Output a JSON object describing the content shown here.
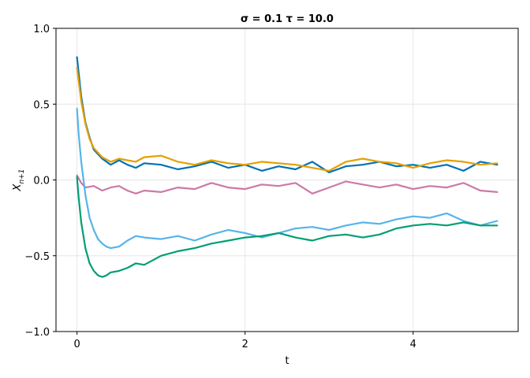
{
  "chart_data": {
    "type": "line",
    "title": "σ = 0.1 τ = 10.0",
    "xlabel": "t",
    "ylabel": "X",
    "ylabel_subscript": "n+1",
    "xlim": [
      -0.25,
      5.25
    ],
    "ylim": [
      -1.0,
      1.0
    ],
    "x_ticks": [
      0,
      2,
      4
    ],
    "x_tick_labels": [
      "0",
      "2",
      "4"
    ],
    "y_ticks": [
      -1.0,
      -0.5,
      0.0,
      0.5,
      1.0
    ],
    "y_tick_labels": [
      "−1.0",
      "−0.5",
      "0.0",
      "0.5",
      "1.0"
    ],
    "grid": true,
    "series": [
      {
        "color": "#0072b2",
        "x": [
          0,
          0.05,
          0.1,
          0.15,
          0.2,
          0.3,
          0.4,
          0.5,
          0.6,
          0.7,
          0.8,
          1.0,
          1.2,
          1.4,
          1.6,
          1.8,
          2.0,
          2.2,
          2.4,
          2.6,
          2.8,
          3.0,
          3.2,
          3.4,
          3.6,
          3.8,
          4.0,
          4.2,
          4.4,
          4.6,
          4.8,
          5.0
        ],
        "y": [
          0.81,
          0.55,
          0.38,
          0.28,
          0.2,
          0.14,
          0.1,
          0.13,
          0.1,
          0.08,
          0.11,
          0.1,
          0.07,
          0.09,
          0.12,
          0.08,
          0.1,
          0.06,
          0.09,
          0.07,
          0.12,
          0.05,
          0.09,
          0.1,
          0.12,
          0.09,
          0.1,
          0.08,
          0.1,
          0.06,
          0.12,
          0.1
        ]
      },
      {
        "color": "#e69f00",
        "x": [
          0,
          0.05,
          0.1,
          0.15,
          0.2,
          0.3,
          0.4,
          0.5,
          0.6,
          0.7,
          0.8,
          1.0,
          1.2,
          1.4,
          1.6,
          1.8,
          2.0,
          2.2,
          2.4,
          2.6,
          2.8,
          3.0,
          3.2,
          3.4,
          3.6,
          3.8,
          4.0,
          4.2,
          4.4,
          4.6,
          4.8,
          5.0
        ],
        "y": [
          0.74,
          0.52,
          0.37,
          0.27,
          0.21,
          0.15,
          0.12,
          0.14,
          0.13,
          0.12,
          0.15,
          0.16,
          0.12,
          0.1,
          0.13,
          0.11,
          0.1,
          0.12,
          0.11,
          0.1,
          0.08,
          0.06,
          0.12,
          0.14,
          0.12,
          0.11,
          0.08,
          0.11,
          0.13,
          0.12,
          0.1,
          0.11
        ]
      },
      {
        "color": "#cc79a7",
        "x": [
          0,
          0.05,
          0.1,
          0.2,
          0.3,
          0.4,
          0.5,
          0.6,
          0.7,
          0.8,
          1.0,
          1.2,
          1.4,
          1.6,
          1.8,
          2.0,
          2.2,
          2.4,
          2.6,
          2.8,
          3.0,
          3.2,
          3.4,
          3.6,
          3.8,
          4.0,
          4.2,
          4.4,
          4.6,
          4.8,
          5.0
        ],
        "y": [
          0.03,
          -0.02,
          -0.05,
          -0.04,
          -0.07,
          -0.05,
          -0.04,
          -0.07,
          -0.09,
          -0.07,
          -0.08,
          -0.05,
          -0.06,
          -0.02,
          -0.05,
          -0.06,
          -0.03,
          -0.04,
          -0.02,
          -0.09,
          -0.05,
          -0.01,
          -0.03,
          -0.05,
          -0.03,
          -0.06,
          -0.04,
          -0.05,
          -0.02,
          -0.07,
          -0.08
        ]
      },
      {
        "color": "#56b4e9",
        "x": [
          0,
          0.02,
          0.05,
          0.1,
          0.15,
          0.2,
          0.25,
          0.3,
          0.35,
          0.4,
          0.5,
          0.6,
          0.7,
          0.8,
          1.0,
          1.2,
          1.4,
          1.6,
          1.8,
          2.0,
          2.2,
          2.4,
          2.6,
          2.8,
          3.0,
          3.2,
          3.4,
          3.6,
          3.8,
          4.0,
          4.2,
          4.4,
          4.6,
          4.8,
          5.0
        ],
        "y": [
          0.47,
          0.3,
          0.12,
          -0.1,
          -0.25,
          -0.33,
          -0.39,
          -0.42,
          -0.44,
          -0.45,
          -0.44,
          -0.4,
          -0.37,
          -0.38,
          -0.39,
          -0.37,
          -0.4,
          -0.36,
          -0.33,
          -0.35,
          -0.38,
          -0.35,
          -0.32,
          -0.31,
          -0.33,
          -0.3,
          -0.28,
          -0.29,
          -0.26,
          -0.24,
          -0.25,
          -0.22,
          -0.27,
          -0.3,
          -0.27
        ]
      },
      {
        "color": "#009e73",
        "x": [
          0,
          0.02,
          0.05,
          0.1,
          0.15,
          0.2,
          0.25,
          0.3,
          0.35,
          0.4,
          0.5,
          0.6,
          0.7,
          0.8,
          1.0,
          1.2,
          1.4,
          1.6,
          1.8,
          2.0,
          2.2,
          2.4,
          2.6,
          2.8,
          3.0,
          3.2,
          3.4,
          3.6,
          3.8,
          4.0,
          4.2,
          4.4,
          4.6,
          4.8,
          5.0
        ],
        "y": [
          0.02,
          -0.12,
          -0.28,
          -0.45,
          -0.55,
          -0.6,
          -0.63,
          -0.64,
          -0.63,
          -0.61,
          -0.6,
          -0.58,
          -0.55,
          -0.56,
          -0.5,
          -0.47,
          -0.45,
          -0.42,
          -0.4,
          -0.38,
          -0.37,
          -0.35,
          -0.38,
          -0.4,
          -0.37,
          -0.36,
          -0.38,
          -0.36,
          -0.32,
          -0.3,
          -0.29,
          -0.3,
          -0.28,
          -0.3,
          -0.3
        ]
      }
    ]
  }
}
